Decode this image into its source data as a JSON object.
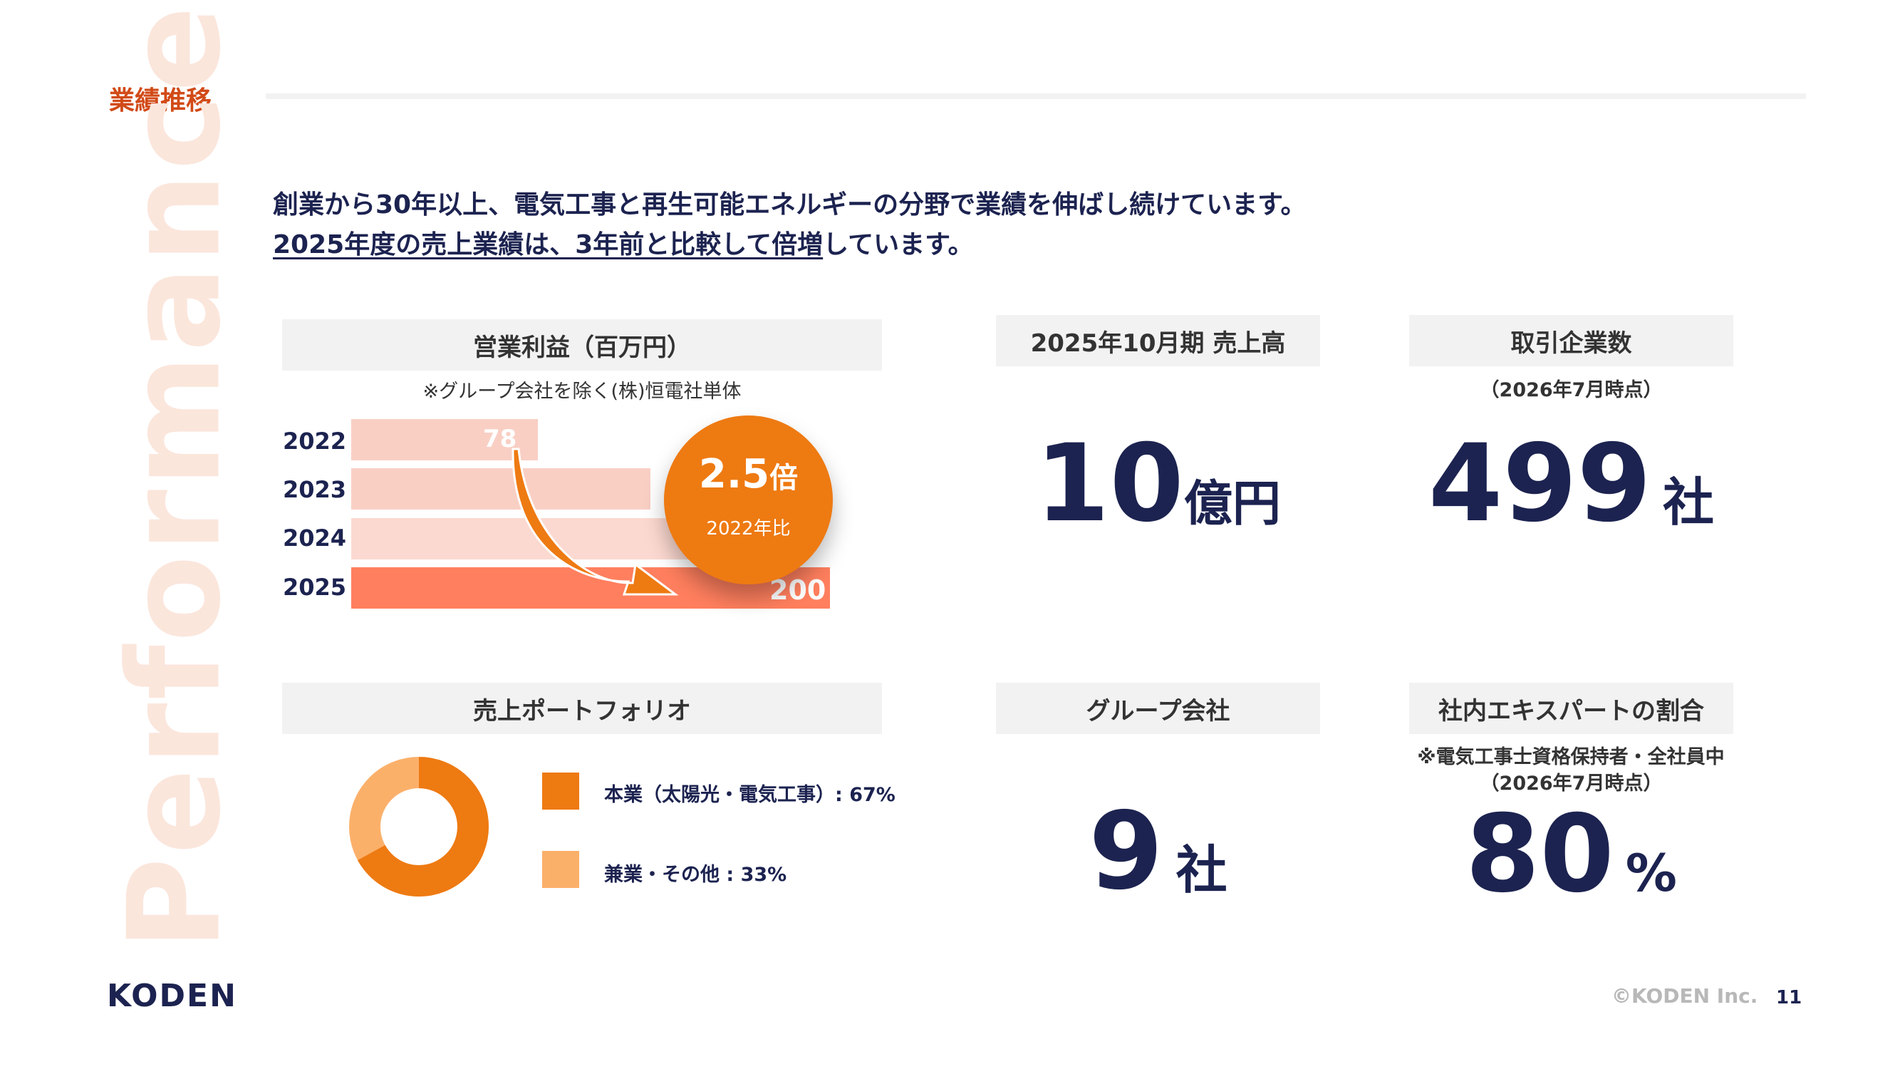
{
  "header": {
    "section_title": "業績推移",
    "lead_line1": "創業から30年以上、電気工事と再生可能エネルギーの分野で業績を伸ばし続けています。",
    "lead_line2_underlined": "2025年度の売上業績は、3年前と比較して倍増",
    "lead_line2_rest": "しています。"
  },
  "watermark": "Performance",
  "profit_panel": {
    "title": "営業利益（百万円）",
    "note": "※グループ会社を除く(株)恒電社単体",
    "badge_value": "2.5",
    "badge_unit": "倍",
    "badge_sub": "2022年比"
  },
  "chart_data": {
    "type": "bar",
    "orientation": "horizontal",
    "categories": [
      "2022",
      "2023",
      "2024",
      "2025"
    ],
    "values": [
      78,
      125,
      null,
      200
    ],
    "data_labels": [
      "78",
      "",
      "",
      "200"
    ],
    "colors": [
      "#f9cfc4",
      "#f9cfc4",
      "#fcd9d0",
      "#ff7f5e"
    ]
  },
  "revenue_panel": {
    "title": "2025年10月期 売上高",
    "value": "10",
    "unit": "億円"
  },
  "clients_panel": {
    "title": "取引企業数",
    "note": "（2026年7月時点）",
    "value": "499",
    "unit": "社"
  },
  "portfolio_panel": {
    "title": "売上ポートフォリオ",
    "legend": [
      {
        "label": "本業（太陽光・電気工事）: 67%",
        "color": "#ee7a12",
        "share": 67
      },
      {
        "label": "兼業・その他 : 33%",
        "color": "#fbb06a",
        "share": 33
      }
    ]
  },
  "group_panel": {
    "title": "グループ会社",
    "value": "9",
    "unit": "社"
  },
  "expert_panel": {
    "title": "社内エキスパートの割合",
    "note1": "※電気工事士資格保持者・全社員中",
    "note2": "（2026年7月時点）",
    "value": "80",
    "unit": "%"
  },
  "footer": {
    "logo": "KODEN",
    "copyright": "©KODEN Inc.",
    "page_number": "11"
  }
}
